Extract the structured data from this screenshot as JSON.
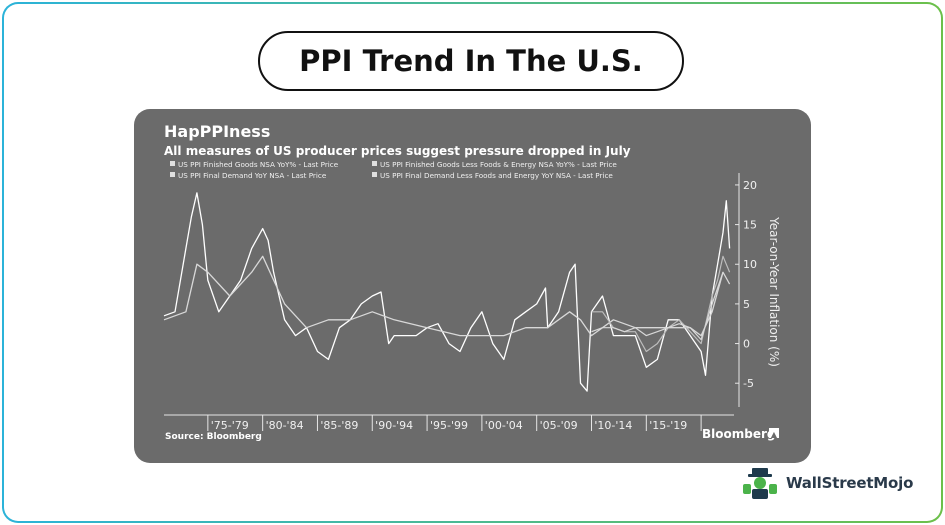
{
  "page": {
    "title": "PPI Trend In The U.S."
  },
  "brand": {
    "name": "WallStreetMojo",
    "icon": "wallstreetmojo-logo-icon"
  },
  "chart_data": {
    "type": "line",
    "title": "HapPPIness",
    "subtitle": "All measures of US producer prices suggest pressure dropped in July",
    "ylabel": "Year-on-Year Inflation (%)",
    "ylim": [
      -8,
      21
    ],
    "xlim": [
      1971,
      2023
    ],
    "y_ticks": [
      20,
      15,
      10,
      5,
      0,
      -5
    ],
    "x_tick_labels": [
      {
        "x": 1977,
        "label": "'75-'79"
      },
      {
        "x": 1982,
        "label": "'80-'84"
      },
      {
        "x": 1987,
        "label": "'85-'89"
      },
      {
        "x": 1992,
        "label": "'90-'94"
      },
      {
        "x": 1997,
        "label": "'95-'99"
      },
      {
        "x": 2002,
        "label": "'00-'04"
      },
      {
        "x": 2007,
        "label": "'05-'09"
      },
      {
        "x": 2012,
        "label": "'10-'14"
      },
      {
        "x": 2017,
        "label": "'15-'19"
      }
    ],
    "x_boundaries": [
      1975,
      1980,
      1985,
      1990,
      1995,
      2000,
      2005,
      2010,
      2015,
      2020
    ],
    "grid": false,
    "legend_position": "top",
    "source": "Source: Bloomberg",
    "watermark": "Bloomberg",
    "colors": {
      "background": "#6b6b6b",
      "series_main": "#ffffff",
      "series_soft": "#d8d8d8",
      "series_faint": "#bdbdbd",
      "axis": "#e6e6e6"
    },
    "series": [
      {
        "name": "US PPI Finished Goods NSA YoY% - Last Price",
        "x": [
          1971,
          1972,
          1973,
          1973.5,
          1974,
          1974.5,
          1975,
          1976,
          1977,
          1978,
          1979,
          1980,
          1980.5,
          1981,
          1982,
          1983,
          1984,
          1985,
          1986,
          1987,
          1988,
          1989,
          1990,
          1990.8,
          1991.5,
          1992,
          1993,
          1994,
          1995,
          1996,
          1997,
          1998,
          1999,
          2000,
          2001,
          2002,
          2003,
          2004,
          2005,
          2005.8,
          2006,
          2007,
          2008,
          2008.5,
          2009,
          2009.6,
          2010,
          2011,
          2012,
          2013,
          2014,
          2015,
          2016,
          2017,
          2018,
          2019,
          2020,
          2020.4,
          2021,
          2021.5,
          2022,
          2022.3,
          2022.6
        ],
        "y": [
          3.5,
          4,
          12,
          16,
          19,
          15,
          8,
          4,
          6,
          8,
          12,
          14.5,
          13,
          9,
          3,
          1,
          2,
          -1,
          -2,
          2,
          3,
          5,
          6,
          6.5,
          0,
          1,
          1,
          1,
          2,
          2.5,
          0,
          -1,
          2,
          4,
          0,
          -2,
          3,
          4,
          5,
          7,
          2,
          4,
          9,
          10,
          -5,
          -6,
          4,
          6,
          1,
          1,
          1,
          -3,
          -2,
          3,
          3,
          1,
          -1,
          -4,
          6,
          10,
          14,
          18,
          12
        ]
      },
      {
        "name": "US PPI Finished Goods Less Foods & Energy NSA YoY% - Last Price",
        "x": [
          1971,
          1973,
          1974,
          1975,
          1977,
          1979,
          1980,
          1981,
          1982,
          1984,
          1986,
          1988,
          1990,
          1992,
          1995,
          1998,
          2000,
          2002,
          2004,
          2006,
          2008,
          2009,
          2010,
          2012,
          2014,
          2016,
          2018,
          2019,
          2020,
          2021,
          2022
        ],
        "y": [
          3,
          4,
          10,
          9,
          6,
          9,
          11,
          8,
          5,
          2,
          3,
          3,
          4,
          3,
          2,
          1,
          1,
          1,
          2,
          2,
          4,
          3,
          1,
          3,
          2,
          2,
          2,
          2,
          1,
          4,
          9
        ]
      },
      {
        "name": "US PPI Final Demand YoY NSA - Last Price",
        "x": [
          2010,
          2011,
          2012,
          2013,
          2014,
          2015,
          2016,
          2017,
          2018,
          2019,
          2020,
          2021,
          2021.5,
          2022,
          2022.6
        ],
        "y": [
          4,
          4,
          2,
          1.5,
          1.5,
          -1,
          0,
          2,
          3,
          1.5,
          0,
          6,
          8,
          11,
          9
        ]
      },
      {
        "name": "US PPI Final Demand Less Foods and Energy YoY NSA - Last Price",
        "x": [
          2010,
          2011,
          2012,
          2013,
          2014,
          2015,
          2016,
          2017,
          2018,
          2019,
          2020,
          2021,
          2021.5,
          2022,
          2022.6
        ],
        "y": [
          1.5,
          2,
          2,
          1.5,
          2,
          1,
          1.5,
          2,
          2.5,
          2,
          0.5,
          5,
          7,
          9,
          7.5
        ]
      }
    ]
  }
}
